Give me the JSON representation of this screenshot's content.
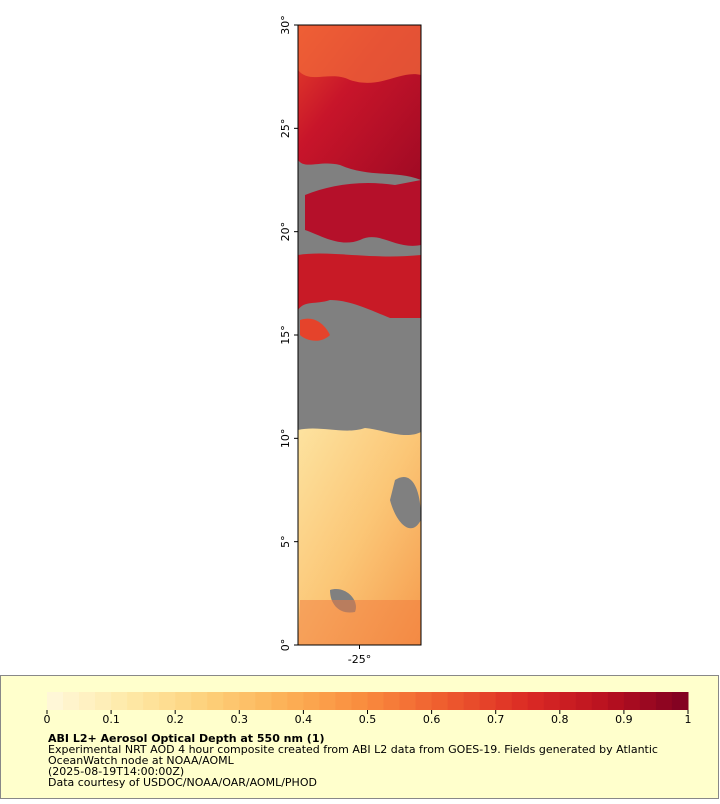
{
  "chart_data": {
    "type": "map",
    "xlim": [
      -28,
      -22
    ],
    "xticks": [
      {
        "value": -25,
        "label": "-25°"
      }
    ],
    "ylim": [
      0,
      30
    ],
    "yticks": [
      {
        "value": 0,
        "label": "0°"
      },
      {
        "value": 5,
        "label": "5°"
      },
      {
        "value": 10,
        "label": "10°"
      },
      {
        "value": 15,
        "label": "15°"
      },
      {
        "value": 20,
        "label": "20°"
      },
      {
        "value": 25,
        "label": "25°"
      },
      {
        "value": 30,
        "label": "30°"
      }
    ],
    "colorbar": {
      "lim": [
        0,
        1
      ],
      "ticks": [
        0,
        0.1,
        0.2,
        0.3,
        0.4,
        0.5,
        0.6,
        0.7,
        0.8,
        0.9,
        1
      ],
      "colorscale": [
        "#fff8dc",
        "#fee9a8",
        "#fdd07a",
        "#fcb055",
        "#f98a3d",
        "#ee5a2e",
        "#db2a24",
        "#b8101f",
        "#7e0022"
      ]
    },
    "title": "ABI L2+ Aerosol Optical Depth at 550 nm (1)",
    "notes": [
      "Experimental NRT AOD 4 hour composite created from ABI L2 data from GOES-19. Fields generated by Atlantic",
      "OceanWatch node at NOAA/AOML",
      "(2025-08-19T14:00:00Z)",
      "Data courtesy of USDOC/NOAA/OAR/AOML/PHOD"
    ]
  }
}
